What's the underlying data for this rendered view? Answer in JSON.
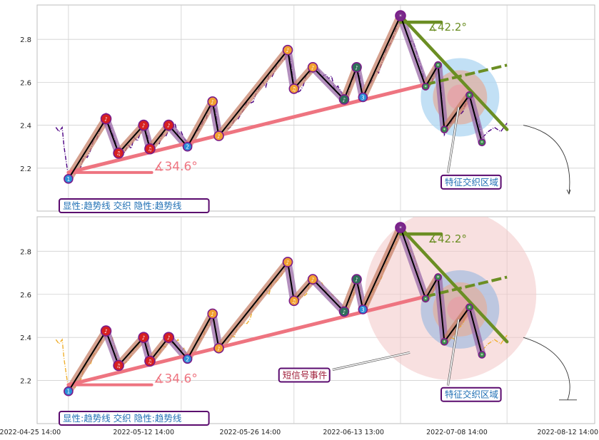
{
  "chart_data": [
    {
      "type": "line",
      "panel": "top",
      "ylim": [
        2.0,
        2.96
      ],
      "yticks": [
        2.2,
        2.4,
        2.6,
        2.8
      ],
      "ytick_labels": [
        "2.2",
        "2.4",
        "2.6",
        "2.8"
      ],
      "grid": true,
      "price_color": "#4b0082",
      "price_style": "dash-dot",
      "swing_points": [
        {
          "x": 1,
          "y": 2.15,
          "label": "1",
          "kind": "low"
        },
        {
          "x": 7,
          "y": 2.43,
          "label": "♪",
          "kind": "high"
        },
        {
          "x": 9,
          "y": 2.27,
          "label": "♫",
          "kind": "low"
        },
        {
          "x": 13,
          "y": 2.4,
          "label": "♪",
          "kind": "high"
        },
        {
          "x": 14,
          "y": 2.29,
          "label": "♫",
          "kind": "low"
        },
        {
          "x": 17,
          "y": 2.4,
          "label": "♪",
          "kind": "high"
        },
        {
          "x": 20,
          "y": 2.3,
          "label": "2",
          "kind": "low"
        },
        {
          "x": 24,
          "y": 2.51,
          "label": "♪",
          "kind": "high"
        },
        {
          "x": 25,
          "y": 2.35,
          "label": "♪",
          "kind": "low"
        },
        {
          "x": 36,
          "y": 2.75,
          "label": "♪",
          "kind": "high"
        },
        {
          "x": 37,
          "y": 2.57,
          "label": "♫",
          "kind": "low"
        },
        {
          "x": 40,
          "y": 2.67,
          "label": "♪",
          "kind": "high"
        },
        {
          "x": 45,
          "y": 2.52,
          "label": "♪",
          "kind": "low"
        },
        {
          "x": 47,
          "y": 2.67,
          "label": "♪",
          "kind": "high"
        },
        {
          "x": 48,
          "y": 2.53,
          "label": "3",
          "kind": "low"
        },
        {
          "x": 54,
          "y": 2.91,
          "label": "*",
          "kind": "high"
        },
        {
          "x": 58,
          "y": 2.58,
          "label": "*",
          "kind": "low"
        },
        {
          "x": 60,
          "y": 2.68,
          "label": "*",
          "kind": "high"
        },
        {
          "x": 61,
          "y": 2.38,
          "label": "*",
          "kind": "low"
        },
        {
          "x": 65,
          "y": 2.54,
          "label": "*",
          "kind": "high"
        },
        {
          "x": 67,
          "y": 2.32,
          "label": "*",
          "kind": "low"
        }
      ],
      "angle_labels": [
        "∡34.6°",
        "∡42.2°"
      ],
      "annotations": [
        "显性:趋势线 交织 隐性:趋势线",
        "特征交织区域"
      ]
    },
    {
      "type": "line",
      "panel": "bottom",
      "ylim": [
        2.0,
        2.96
      ],
      "yticks": [
        2.2,
        2.4,
        2.6,
        2.8
      ],
      "ytick_labels": [
        "2.2",
        "2.4",
        "2.6",
        "2.8"
      ],
      "grid": true,
      "price_color": "#f0b030",
      "price_style": "dash-dot",
      "swing_points": [
        {
          "x": 1,
          "y": 2.15,
          "label": "1",
          "kind": "low"
        },
        {
          "x": 7,
          "y": 2.43,
          "label": "♪",
          "kind": "high"
        },
        {
          "x": 9,
          "y": 2.27,
          "label": "♫",
          "kind": "low"
        },
        {
          "x": 13,
          "y": 2.4,
          "label": "♪",
          "kind": "high"
        },
        {
          "x": 14,
          "y": 2.29,
          "label": "♫",
          "kind": "low"
        },
        {
          "x": 17,
          "y": 2.4,
          "label": "♪",
          "kind": "high"
        },
        {
          "x": 20,
          "y": 2.3,
          "label": "2",
          "kind": "low"
        },
        {
          "x": 24,
          "y": 2.51,
          "label": "♪",
          "kind": "high"
        },
        {
          "x": 25,
          "y": 2.35,
          "label": "♪",
          "kind": "low"
        },
        {
          "x": 36,
          "y": 2.75,
          "label": "♪",
          "kind": "high"
        },
        {
          "x": 37,
          "y": 2.57,
          "label": "♫",
          "kind": "low"
        },
        {
          "x": 40,
          "y": 2.67,
          "label": "♪",
          "kind": "high"
        },
        {
          "x": 45,
          "y": 2.52,
          "label": "♪",
          "kind": "low"
        },
        {
          "x": 47,
          "y": 2.67,
          "label": "♪",
          "kind": "high"
        },
        {
          "x": 48,
          "y": 2.53,
          "label": "3",
          "kind": "low"
        },
        {
          "x": 54,
          "y": 2.91,
          "label": "*",
          "kind": "high"
        },
        {
          "x": 58,
          "y": 2.58,
          "label": "*",
          "kind": "low"
        },
        {
          "x": 60,
          "y": 2.68,
          "label": "*",
          "kind": "high"
        },
        {
          "x": 61,
          "y": 2.38,
          "label": "*",
          "kind": "low"
        },
        {
          "x": 65,
          "y": 2.54,
          "label": "*",
          "kind": "high"
        },
        {
          "x": 67,
          "y": 2.32,
          "label": "*",
          "kind": "low"
        }
      ],
      "angle_labels": [
        "∡34.6°",
        "∡42.2°"
      ],
      "annotations": [
        "显性:趋势线 交织 隐性:趋势线",
        "特征交织区域",
        "短信号事件"
      ]
    }
  ],
  "xtick_labels": [
    "2022-04-25 14:00",
    "2022-05-12 14:00",
    "2022-05-26 14:00",
    "2022-06-13 13:00",
    "2022-07-08 14:00",
    "2022-08-12 14:00"
  ],
  "colors": {
    "uptrend_line": "#ee7480",
    "downtrend_line": "#6b8e23",
    "swing_path": "#000000",
    "bullish_band": "#c8826a",
    "bearish_band": "#9a6aa8",
    "box_border": "#5a0a6e",
    "box_text": "#1f6fb4",
    "event_text": "#a0203a"
  }
}
